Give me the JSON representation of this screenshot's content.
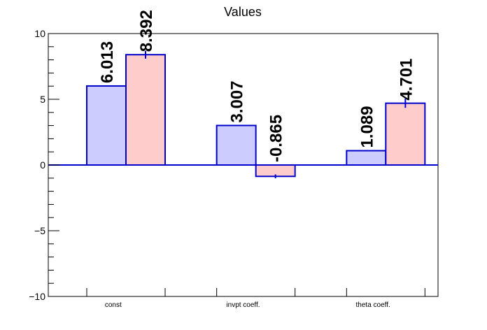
{
  "chart_data": {
    "type": "bar",
    "title": "Values",
    "categories": [
      "const",
      "invpt coeff.",
      "theta coeff."
    ],
    "series": [
      {
        "values": [
          6.013,
          3.007,
          1.089
        ],
        "errors": [
          0,
          0,
          0
        ]
      },
      {
        "values": [
          8.392,
          -0.865,
          4.701
        ],
        "errors": [
          0.3,
          0.15,
          0.35
        ]
      }
    ],
    "value_labels": [
      [
        "6.013",
        "3.007",
        "1.089"
      ],
      [
        "8.392",
        "-0.865",
        "4.701"
      ]
    ],
    "ylim": [
      -10,
      10
    ],
    "yticks": [
      -10,
      -5,
      0,
      5,
      10
    ],
    "ytick_labels": [
      "−10",
      "−5",
      "0",
      "5",
      "10"
    ],
    "xlabel": "",
    "ylabel": "",
    "grid": false,
    "colors": {
      "series_fills": [
        "#ccccff",
        "#ffcccc"
      ],
      "edge": "#0000cc",
      "zero_line": "#0000cc",
      "axis": "#000000",
      "label_text": "#000000"
    }
  }
}
